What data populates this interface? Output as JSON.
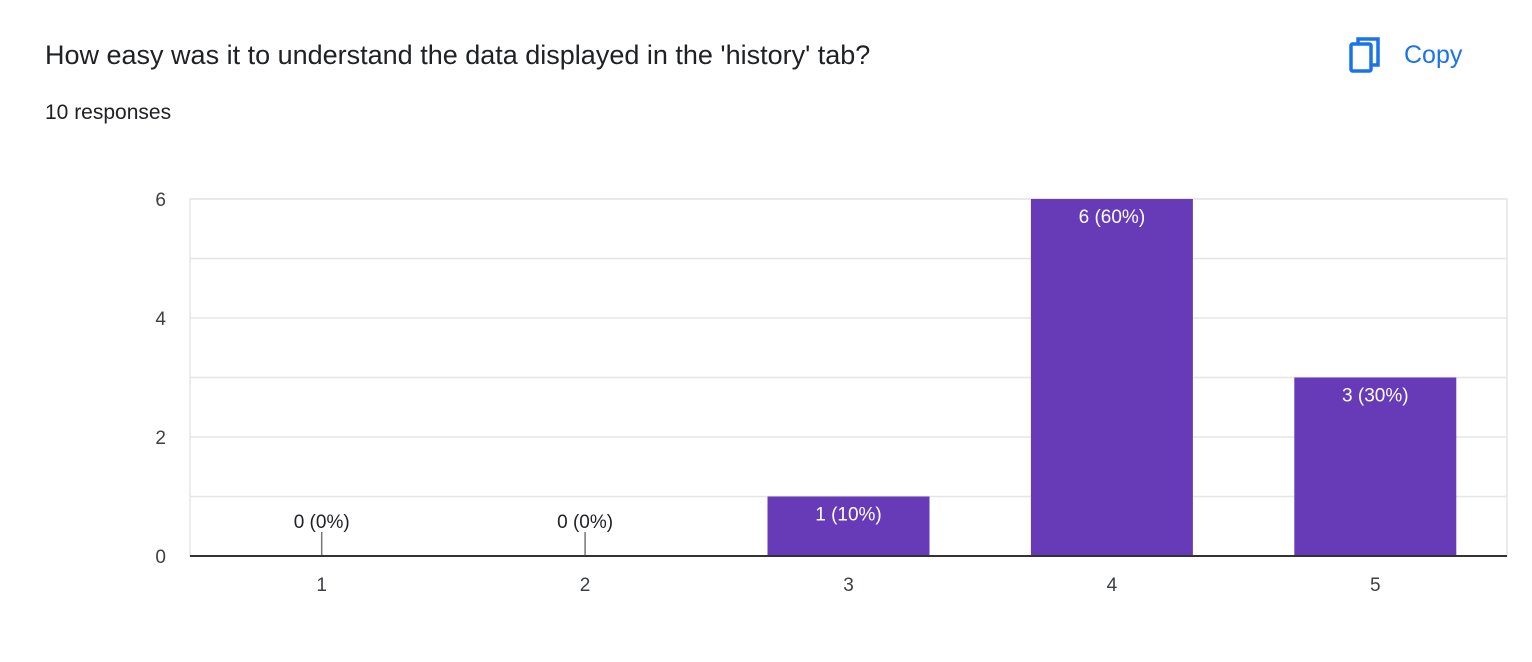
{
  "header": {
    "question": "How easy was it to understand the data displayed in the 'history' tab?",
    "responses": "10 responses",
    "copy_label": "Copy",
    "copy_icon": "copy-icon"
  },
  "colors": {
    "bar": "#673ab7",
    "accent": "#1a73e8",
    "grid": "#e6e6e6",
    "axis": "#333333"
  },
  "chart_data": {
    "type": "bar",
    "categories": [
      "1",
      "2",
      "3",
      "4",
      "5"
    ],
    "values": [
      0,
      0,
      1,
      6,
      3
    ],
    "bar_labels": [
      "0 (0%)",
      "0 (0%)",
      "1 (10%)",
      "6 (60%)",
      "3 (30%)"
    ],
    "ylim": [
      0,
      6
    ],
    "y_ticks": [
      0,
      2,
      4,
      6
    ],
    "grid": true
  }
}
